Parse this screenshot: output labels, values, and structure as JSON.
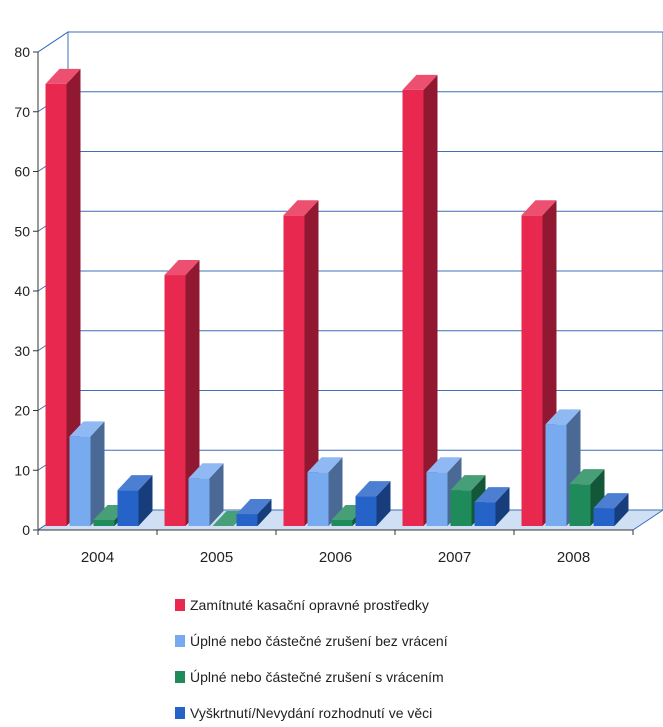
{
  "chart_data": {
    "type": "bar",
    "categories": [
      "2004",
      "2005",
      "2006",
      "2007",
      "2008"
    ],
    "series": [
      {
        "name": "Zamítnuté kasační opravné prostředky",
        "values": [
          74,
          42,
          52,
          73,
          52
        ],
        "color": "#e8284f"
      },
      {
        "name": "Úplné nebo částečné zrušení bez vrácení",
        "values": [
          15,
          8,
          9,
          9,
          17
        ],
        "color": "#78aaf0"
      },
      {
        "name": "Úplné nebo částečné zrušení s vrácením",
        "values": [
          1,
          0,
          1,
          6,
          7
        ],
        "color": "#1f8a5a"
      },
      {
        "name": "Vyškrtnutí/Nevydání rozhodnutí ve věci",
        "values": [
          6,
          2,
          5,
          4,
          3
        ],
        "color": "#2563c8"
      }
    ],
    "yticks": [
      "0",
      "10",
      "20",
      "30",
      "40",
      "50",
      "60",
      "70",
      "80"
    ],
    "ylim": [
      0,
      80
    ],
    "grid": true,
    "legend_position": "bottom",
    "title": "",
    "xlabel": "",
    "ylabel": ""
  }
}
